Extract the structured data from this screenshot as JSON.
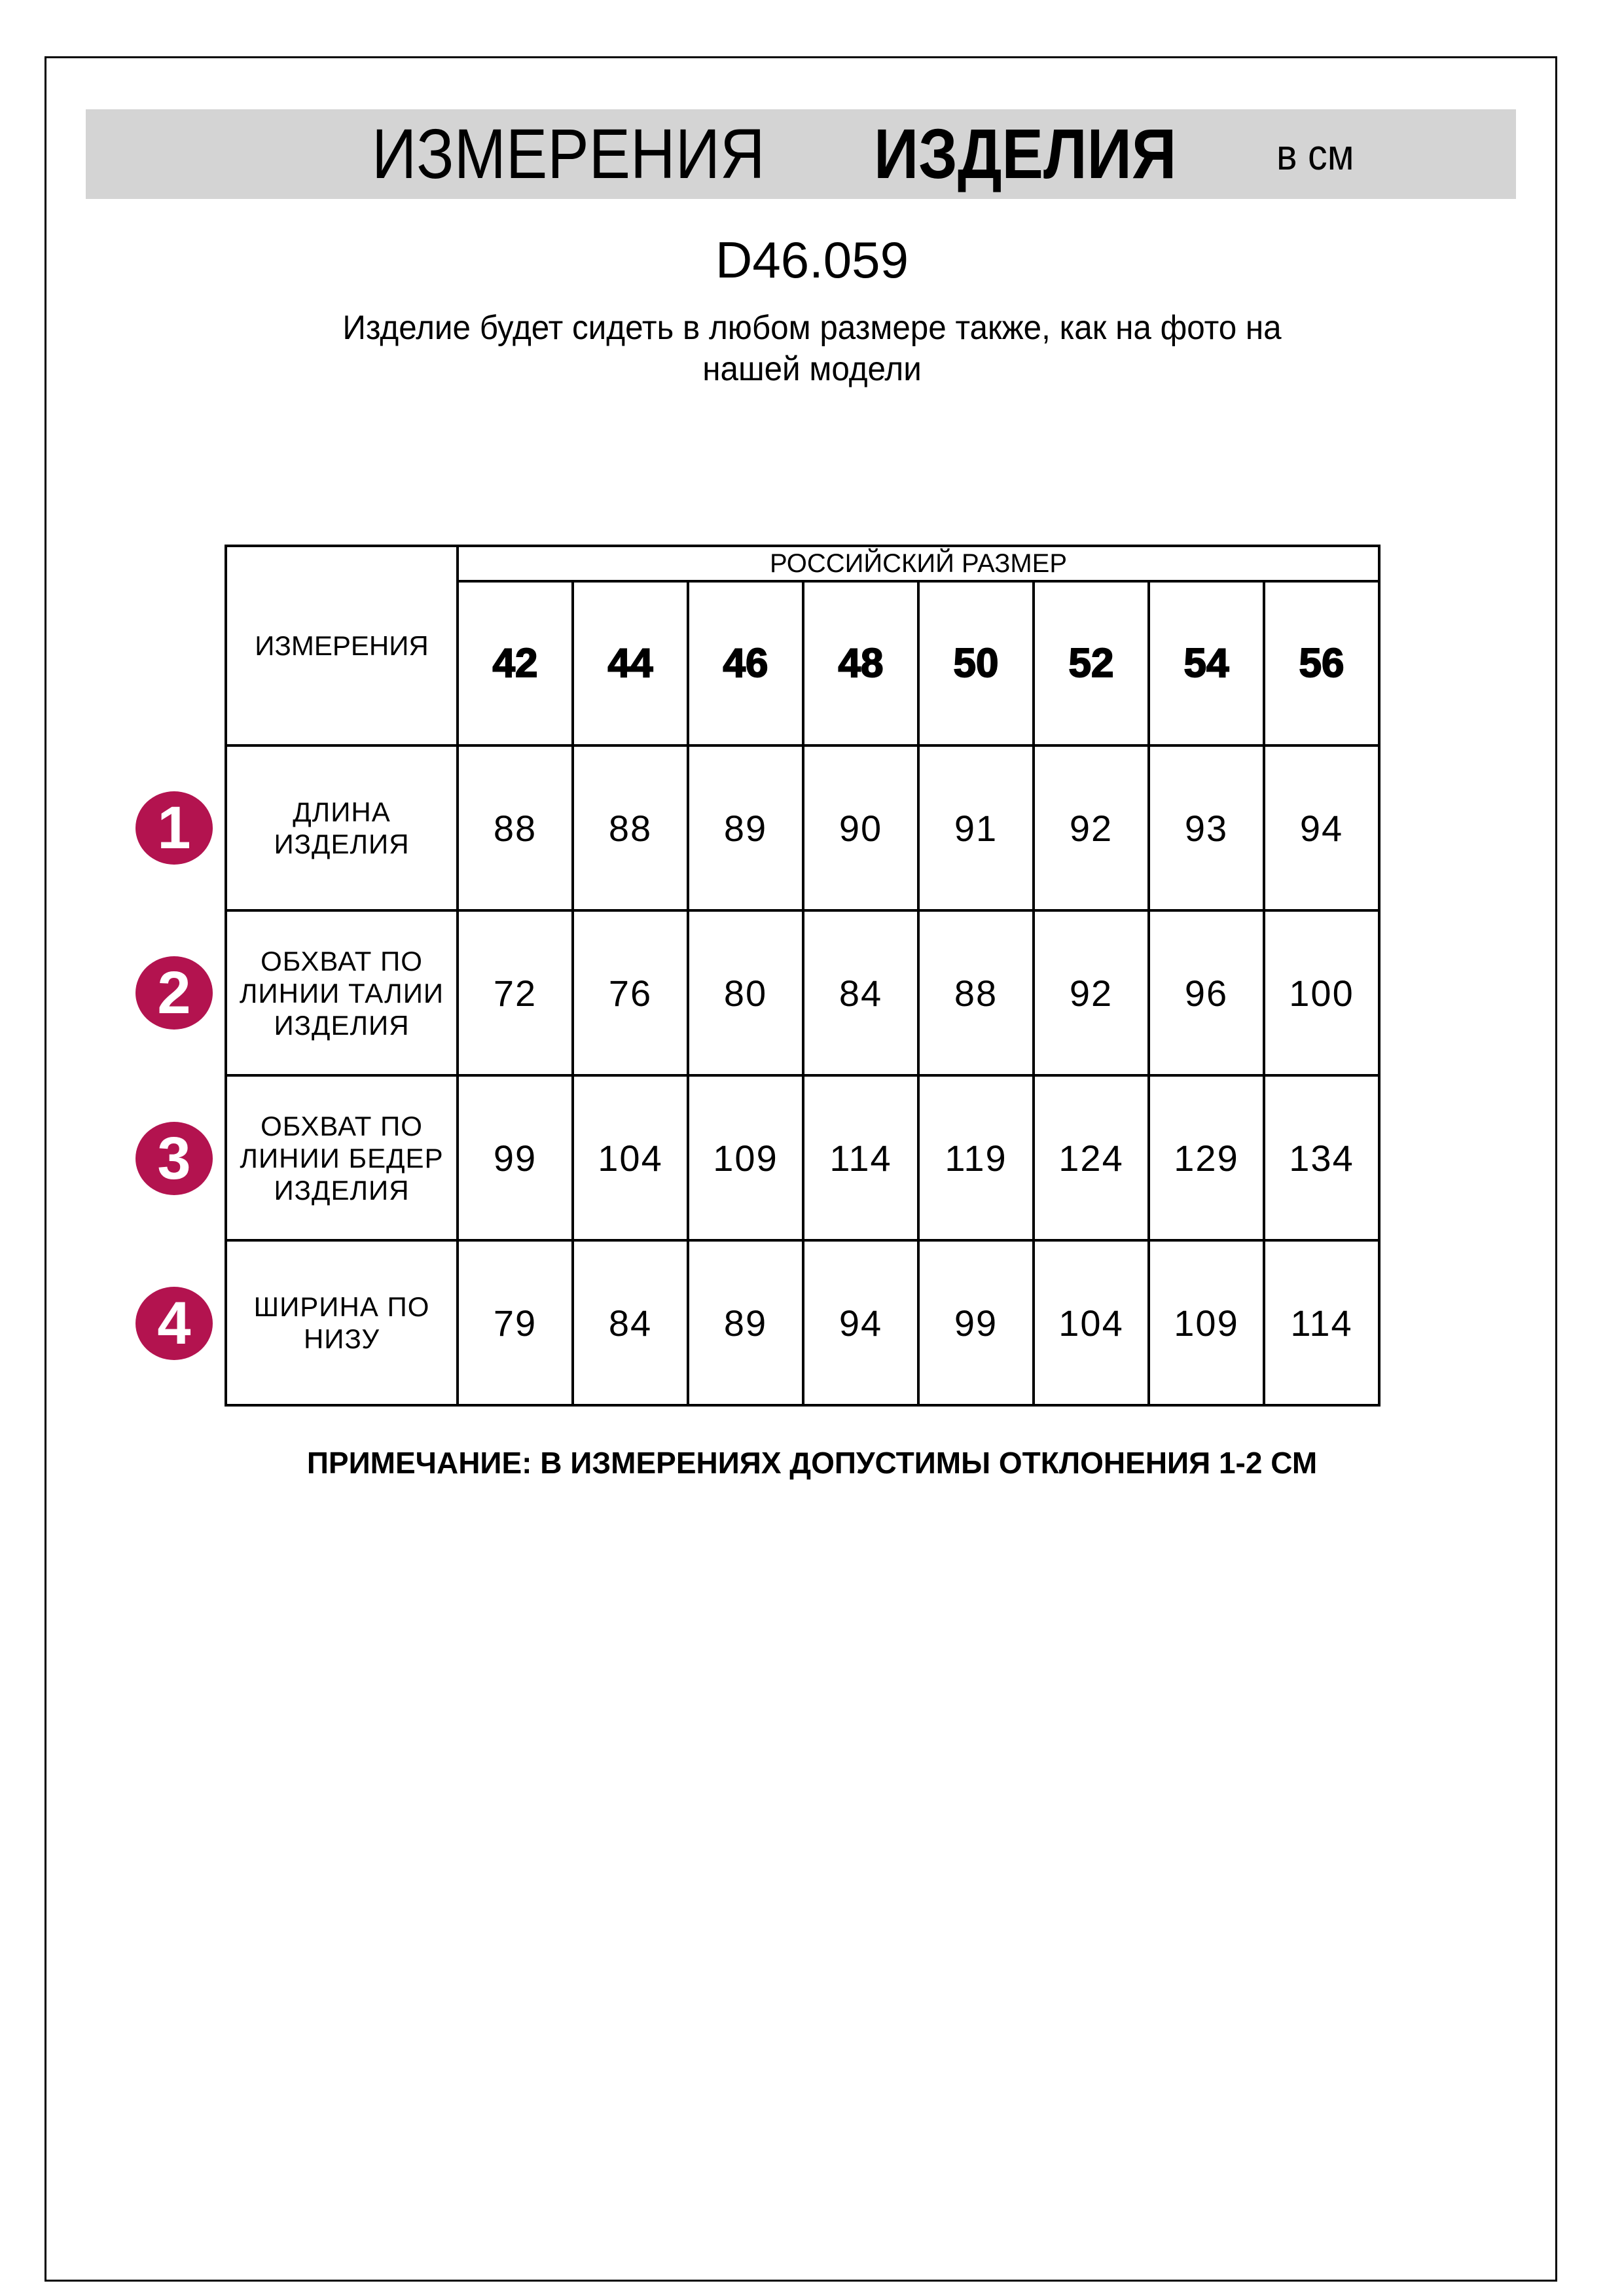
{
  "header": {
    "title_regular": "ИЗМЕРЕНИЯ",
    "title_bold": "ИЗДЕЛИЯ",
    "units": "в см"
  },
  "product_code": "D46.059",
  "subtitle_lines": [
    "Изделие будет сидеть в любом размере также, как на фото на",
    "нашей модели"
  ],
  "table": {
    "measurements_header": "ИЗМЕРЕНИЯ",
    "size_group_header": "РОССИЙСКИЙ РАЗМЕР",
    "sizes": [
      "42",
      "44",
      "46",
      "48",
      "50",
      "52",
      "54",
      "56"
    ],
    "rows": [
      {
        "number": "1",
        "label": [
          "ДЛИНА",
          "ИЗДЕЛИЯ"
        ],
        "values": [
          "88",
          "88",
          "89",
          "90",
          "91",
          "92",
          "93",
          "94"
        ]
      },
      {
        "number": "2",
        "label": [
          "ОБХВАТ ПО",
          "ЛИНИИ ТАЛИИ",
          "ИЗДЕЛИЯ"
        ],
        "values": [
          "72",
          "76",
          "80",
          "84",
          "88",
          "92",
          "96",
          "100"
        ]
      },
      {
        "number": "3",
        "label": [
          "ОБХВАТ ПО",
          "ЛИНИИ БЕДЕР",
          "ИЗДЕЛИЯ"
        ],
        "values": [
          "99",
          "104",
          "109",
          "114",
          "119",
          "124",
          "129",
          "134"
        ]
      },
      {
        "number": "4",
        "label": [
          "ШИРИНА ПО",
          "НИЗУ"
        ],
        "values": [
          "79",
          "84",
          "89",
          "94",
          "99",
          "104",
          "109",
          "114"
        ]
      }
    ]
  },
  "note": "ПРИМЕЧАНИЕ: В ИЗМЕРЕНИЯХ ДОПУСТИМЫ ОТКЛОНЕНИЯ 1-2 СМ",
  "colors": {
    "badge": "#b3134f",
    "header_bar": "#d4d4d4"
  }
}
